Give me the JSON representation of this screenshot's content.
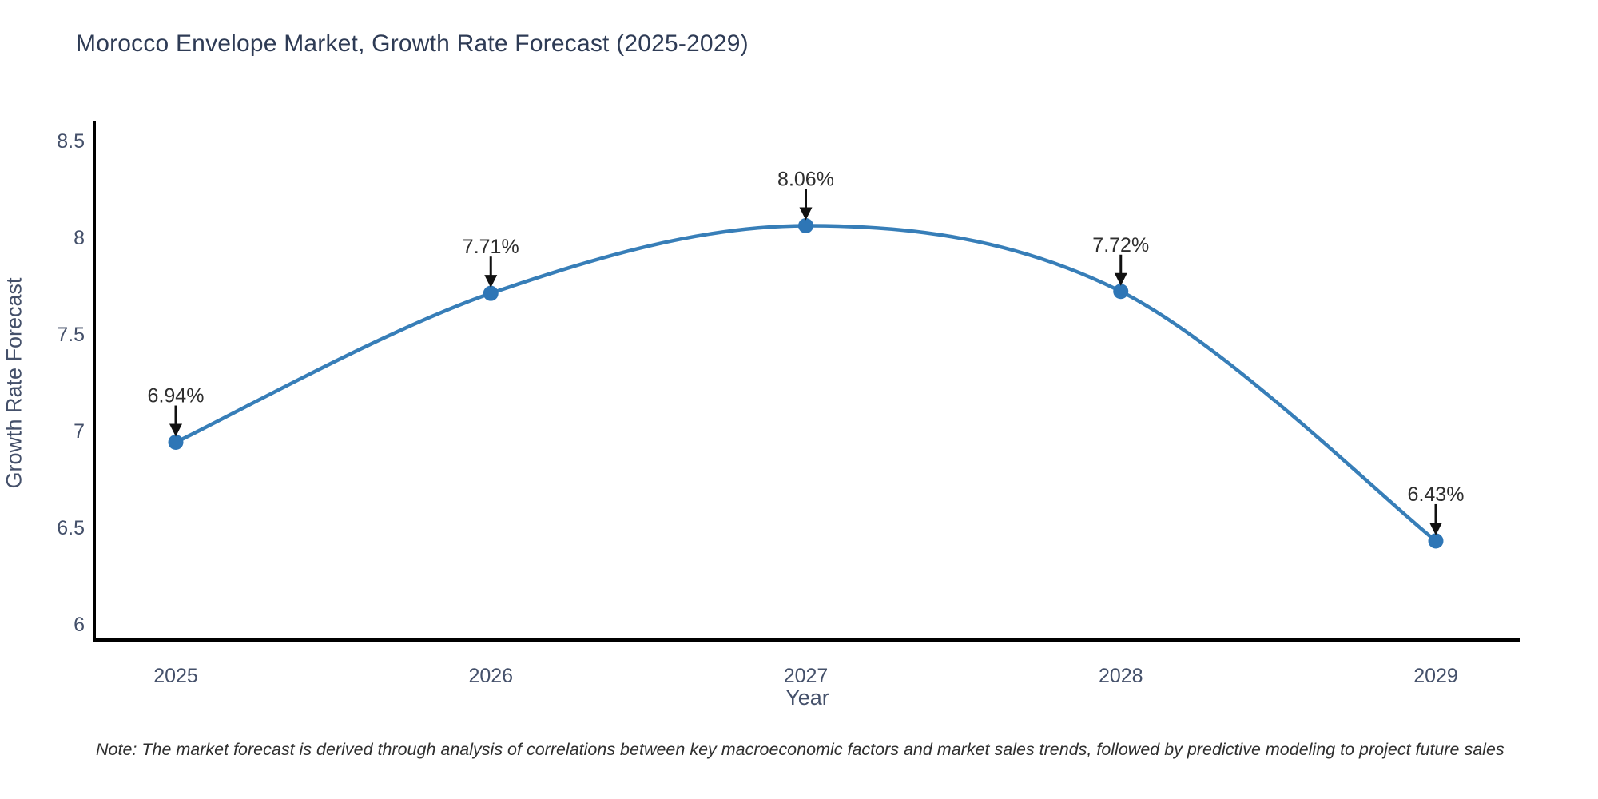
{
  "title": "Morocco Envelope Market, Growth Rate Forecast (2025-2029)",
  "note": "Note: The market forecast is derived through analysis of correlations between key macroeconomic factors and market sales trends, followed by predictive modeling to project future sales",
  "colors": {
    "line": "#377eb8",
    "marker": "#2e76b6",
    "axis": "#000000",
    "arrow": "#111111",
    "title_text": "#2e3b55",
    "tick_text": "#44506a",
    "annotation_text": "#2f2f2f"
  },
  "chart_data": {
    "type": "line",
    "title": "Morocco Envelope Market, Growth Rate Forecast (2025-2029)",
    "categories": [
      "2025",
      "2026",
      "2027",
      "2028",
      "2029"
    ],
    "values": [
      6.94,
      7.71,
      8.06,
      7.72,
      6.43
    ],
    "point_labels": [
      "6.94%",
      "7.71%",
      "8.06%",
      "7.72%",
      "6.43%"
    ],
    "xlabel": "Year",
    "ylabel": "Growth Rate Forecast",
    "ylim": [
      6,
      8.5
    ],
    "yticks": [
      6,
      6.5,
      7,
      7.5,
      8,
      8.5
    ],
    "ytick_labels": [
      "6",
      "6.5",
      "7",
      "7.5",
      "8",
      "8.5"
    ],
    "grid": false,
    "legend": "none",
    "line_shape": "spline",
    "annotations": "value labels with downward arrows above each point"
  }
}
